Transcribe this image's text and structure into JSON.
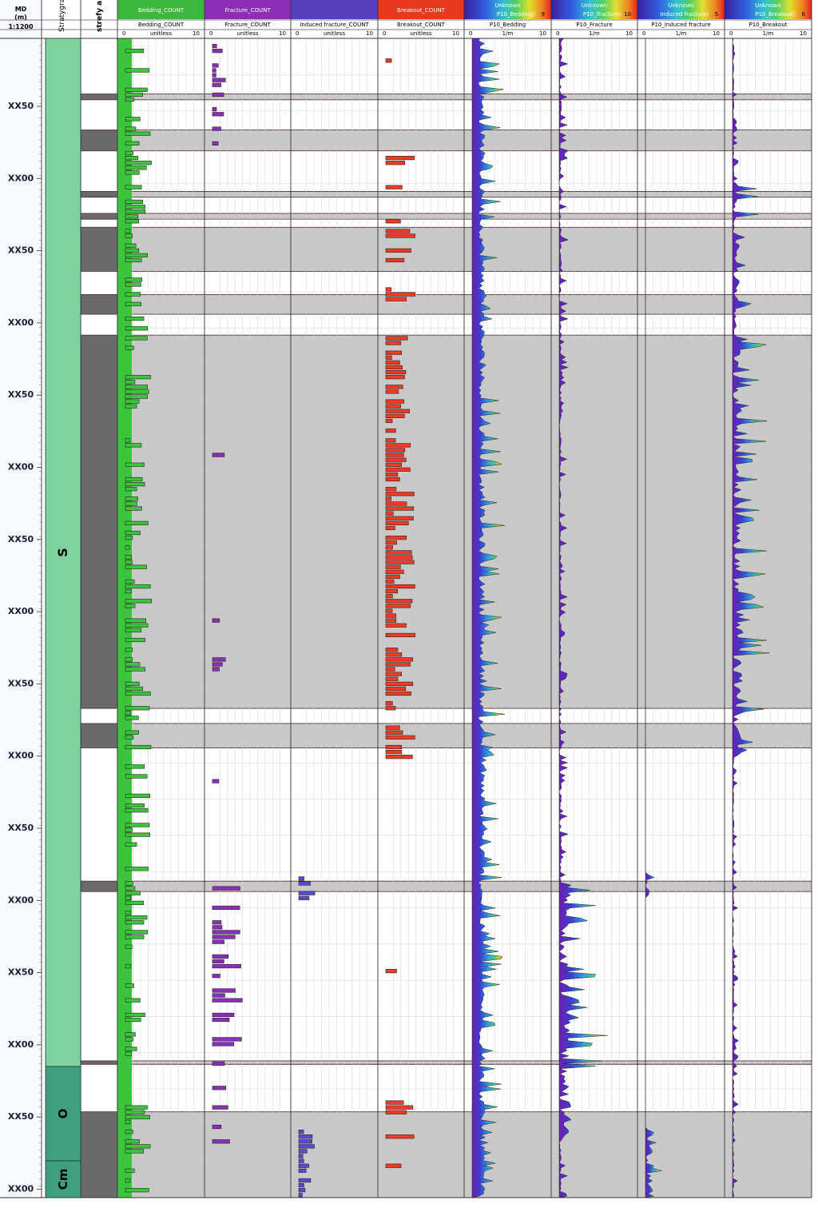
{
  "depth_header": {
    "line1": "MD",
    "line2": "(m)",
    "line3": "1:1200"
  },
  "strat_header": "Stratygraf",
  "zone_header": "strefy an",
  "depth_labels": [
    "XX50",
    "XX00",
    "XX50",
    "XX00",
    "XX50",
    "XX00",
    "XX50",
    "XX00",
    "XX50",
    "XX00",
    "XX50",
    "XX00",
    "XX50",
    "XX00",
    "XX50",
    "XX00"
  ],
  "strat_units": [
    {
      "label": "S",
      "color": "#7fd19e"
    },
    {
      "label": "O",
      "color": "#3f9f80"
    },
    {
      "label": "Cm",
      "color": "#3f9f80"
    }
  ],
  "count_tracks": [
    {
      "title": "Bedding_COUNT",
      "sub": "Bedding_COUNT",
      "unit": "unitless",
      "min": "0",
      "max": "10",
      "header_color": "#3cb83c",
      "fill": "#3cc43c"
    },
    {
      "title": "Fracture_COUNT",
      "sub": "Fracture_COUNT",
      "unit": "unitless",
      "min": "0",
      "max": "10",
      "header_color": "#8a2fb6",
      "fill": "#8a2fb6"
    },
    {
      "title": "",
      "sub": "Induced fracture_COUNT",
      "unit": "unitless",
      "min": "0",
      "max": "10",
      "header_color": "#5a3fc0",
      "fill": "#5a4ad0"
    },
    {
      "title": "Breakout_COUNT",
      "sub": "Breakout_COUNT",
      "unit": "unitless",
      "min": "0",
      "max": "10",
      "header_color": "#e8381e",
      "fill": "#f03a24"
    }
  ],
  "p10_tracks": [
    {
      "title": "Unknown",
      "scale_label": "P10_Bedding)",
      "scale_max": "9",
      "sub": "P10_Bedding",
      "unit": "1/m",
      "min": "0",
      "max": "10"
    },
    {
      "title": "Unknown",
      "scale_label": "P10_Fracture)",
      "scale_max": "10",
      "sub": "P10_Fracture",
      "unit": "1/m",
      "min": "0",
      "max": "10"
    },
    {
      "title": "Unknown",
      "scale_label": "Induced fracture)",
      "scale_max": "5",
      "sub": "P10_Induced fracture",
      "unit": "1/m",
      "min": "0",
      "max": "10"
    },
    {
      "title": "Unknown",
      "scale_label": "P10_Breakout)",
      "scale_max": "6",
      "sub": "P10_Breakout",
      "unit": "1/m",
      "min": "0",
      "max": "10"
    }
  ],
  "colors": {
    "shaded": "#c8c8c8",
    "zone_dark": "#6a6a6a",
    "grid": "#d0d0d0"
  },
  "chart_data": {
    "type": "well-log",
    "depth_scale": "1:1200",
    "zones": [
      {
        "top": 0.048,
        "bottom": 0.053
      },
      {
        "top": 0.079,
        "bottom": 0.097
      },
      {
        "top": 0.132,
        "bottom": 0.137
      },
      {
        "top": 0.151,
        "bottom": 0.156
      },
      {
        "top": 0.163,
        "bottom": 0.201
      },
      {
        "top": 0.221,
        "bottom": 0.238
      },
      {
        "top": 0.256,
        "bottom": 0.578
      },
      {
        "top": 0.591,
        "bottom": 0.612
      },
      {
        "top": 0.727,
        "bottom": 0.736
      },
      {
        "top": 0.882,
        "bottom": 0.885
      },
      {
        "top": 0.926,
        "bottom": 1.0
      }
    ]
  }
}
